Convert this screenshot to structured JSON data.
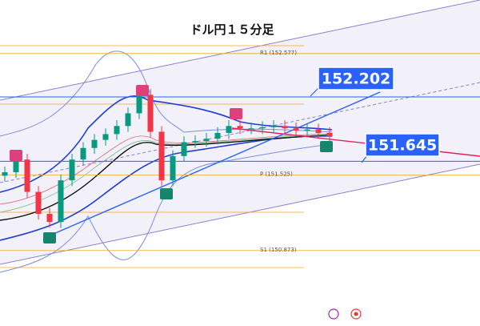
{
  "chart_data": {
    "type": "candlestick",
    "title": "ドル円１５分足",
    "ylim": [
      150.22,
      153.04
    ],
    "up_color": "#089981",
    "down_color": "#f23645",
    "open": [
      151.52,
      151.55,
      151.66,
      151.38,
      151.19,
      151.12,
      151.48,
      151.66,
      151.76,
      151.83,
      151.88,
      151.95,
      152.06,
      152.22,
      151.9,
      151.48,
      151.69,
      151.81,
      151.82,
      151.84,
      151.89,
      151.95,
      151.93,
      151.93,
      151.94,
      151.95,
      151.93,
      151.91,
      151.92,
      151.89
    ],
    "high": [
      151.6,
      151.71,
      151.71,
      151.43,
      151.24,
      151.53,
      151.71,
      151.81,
      151.88,
      151.93,
      152.0,
      152.11,
      152.27,
      152.27,
      151.95,
      151.74,
      151.86,
      151.87,
      151.89,
      151.94,
      152.0,
      152.0,
      151.98,
      151.99,
      152.0,
      152.0,
      151.98,
      151.97,
      151.97,
      151.94
    ],
    "low": [
      151.47,
      151.5,
      151.33,
      151.14,
      151.07,
      151.07,
      151.43,
      151.61,
      151.71,
      151.78,
      151.83,
      151.9,
      152.01,
      151.85,
      151.43,
      151.43,
      151.64,
      151.76,
      151.77,
      151.79,
      151.84,
      151.88,
      151.88,
      151.88,
      151.89,
      151.88,
      151.86,
      151.86,
      151.84,
      151.81
    ],
    "close": [
      151.55,
      151.66,
      151.38,
      151.19,
      151.12,
      151.48,
      151.66,
      151.76,
      151.83,
      151.88,
      151.95,
      152.06,
      152.22,
      151.9,
      151.48,
      151.69,
      151.81,
      151.82,
      151.84,
      151.89,
      151.95,
      151.93,
      151.93,
      151.94,
      151.95,
      151.93,
      151.91,
      151.92,
      151.89,
      151.86
    ],
    "levels": [
      {
        "label": "R1 (152.577)",
        "value": 152.577
      },
      {
        "label": "P (151.525)",
        "value": 151.525
      },
      {
        "label": "S1 (150.873)",
        "value": 150.873
      }
    ],
    "level_color": "#f5a623",
    "callouts": [
      152.202,
      151.645
    ],
    "callout_color": "#2962ff"
  }
}
